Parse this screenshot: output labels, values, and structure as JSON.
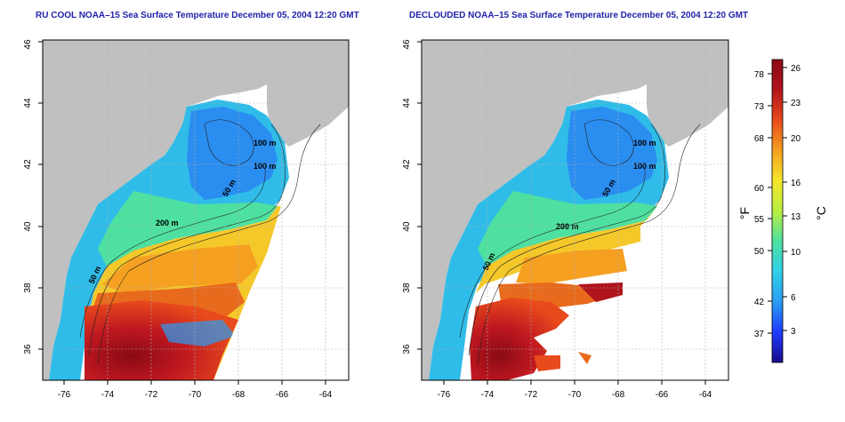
{
  "panels": [
    {
      "title": "RU COOL NOAA–15 Sea Surface Temperature December 05, 2004 12:20 GMT",
      "contour_labels": [
        "100 m",
        "100 m",
        "50 m",
        "200 m",
        "50 m"
      ]
    },
    {
      "title": "DECLOUDED NOAA–15 Sea Surface Temperature December 05, 2004 12:20 GMT",
      "contour_labels": [
        "100 m",
        "100 m",
        "50 m",
        "200 m",
        "50 m"
      ]
    }
  ],
  "axes": {
    "lon_ticks": [
      "-76",
      "-74",
      "-72",
      "-70",
      "-68",
      "-66",
      "-64"
    ],
    "lat_ticks": [
      "36",
      "38",
      "40",
      "42",
      "44",
      "46"
    ]
  },
  "colorbar": {
    "fahrenheit_ticks": [
      "78",
      "73",
      "68",
      "60",
      "55",
      "50",
      "42",
      "37"
    ],
    "celsius_ticks": [
      "26",
      "23",
      "20",
      "16",
      "13",
      "10",
      "6",
      "3"
    ],
    "fahrenheit_unit": "°F",
    "celsius_unit": "°C",
    "colors": [
      "#1a0a8c",
      "#1e3cff",
      "#2a9df4",
      "#30d0e8",
      "#4ee0a0",
      "#b8ee40",
      "#f5e62a",
      "#f5a021",
      "#e84a1c",
      "#b0141c",
      "#8a0a14"
    ]
  },
  "colors": {
    "land": "#c0c0c0",
    "ocean_clear": "#ffffff",
    "title": "#2222aa",
    "frame": "#000000",
    "grid": "#b0b0b0"
  }
}
